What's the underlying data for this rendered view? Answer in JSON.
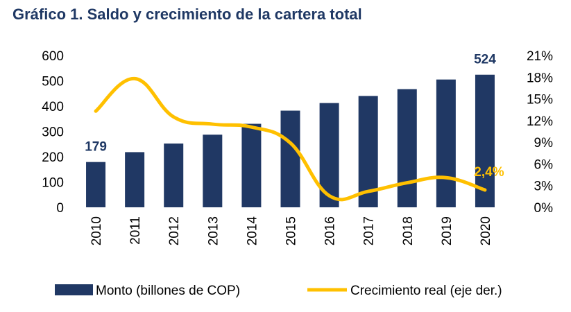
{
  "chart_data": {
    "type": "bar",
    "title": "Gráfico 1. Saldo y crecimiento de la cartera total",
    "categories": [
      "2010",
      "2011",
      "2012",
      "2013",
      "2014",
      "2015",
      "2016",
      "2017",
      "2018",
      "2019",
      "2020"
    ],
    "series": [
      {
        "name": "Monto (billones de COP)",
        "type": "bar",
        "axis": "left",
        "color": "#203864",
        "values": [
          179,
          218,
          252,
          287,
          330,
          382,
          412,
          440,
          467,
          505,
          524
        ]
      },
      {
        "name": "Crecimiento real (eje der.)",
        "type": "line",
        "axis": "right",
        "color": "#ffc000",
        "values": [
          13.3,
          17.8,
          12.5,
          11.5,
          11.1,
          8.9,
          1.6,
          2.2,
          3.4,
          4.1,
          2.4
        ]
      }
    ],
    "left_axis": {
      "min": 0,
      "max": 600,
      "ticks": [
        "0",
        "100",
        "200",
        "300",
        "400",
        "500",
        "600"
      ]
    },
    "right_axis": {
      "min": 0,
      "max": 21,
      "ticks": [
        "0%",
        "3%",
        "6%",
        "9%",
        "12%",
        "15%",
        "18%",
        "21%"
      ]
    },
    "annotations": [
      {
        "text": "179",
        "series": 0,
        "index": 0,
        "color": "#1f3864"
      },
      {
        "text": "524",
        "series": 0,
        "index": 10,
        "color": "#1f3864"
      },
      {
        "text": "2,4%",
        "series": 1,
        "index": 10,
        "color": "#ffc000"
      }
    ],
    "legend": {
      "placement": "bottom"
    },
    "grid": false
  }
}
